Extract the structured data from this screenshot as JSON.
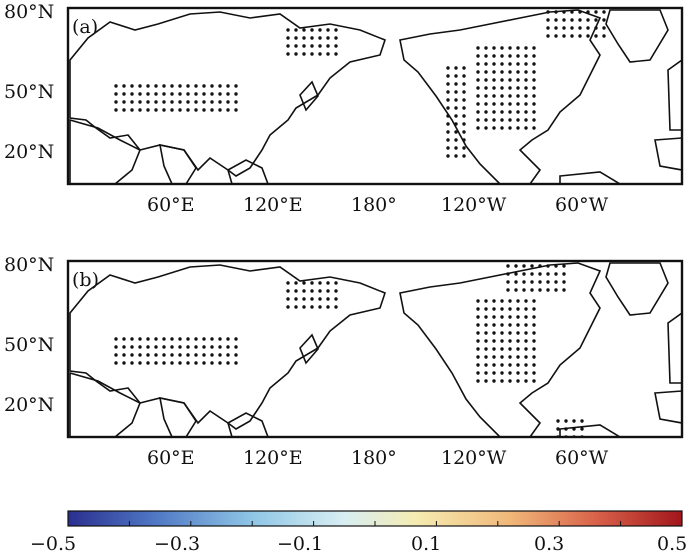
{
  "panels": [
    {
      "tag": "(a)",
      "lat_labels": [
        "80°N",
        "50°N",
        "20°N"
      ],
      "lon_labels": [
        "60°E",
        "120°E",
        "180°",
        "120°W",
        "60°W"
      ]
    },
    {
      "tag": "(b)",
      "lat_labels": [
        "80°N",
        "50°N",
        "20°N"
      ],
      "lon_labels": [
        "60°E",
        "120°E",
        "180°",
        "120°W",
        "60°W"
      ]
    }
  ],
  "colorbar": {
    "ticks": [
      "−0.5",
      "−0.3",
      "−0.1",
      "0.1",
      "0.3",
      "0.5"
    ],
    "range": [
      -0.5,
      0.5
    ],
    "colors": [
      "#2a2f8f",
      "#4f77c4",
      "#8fc6e6",
      "#d8eef2",
      "#f5ebb0",
      "#f0b779",
      "#d9624a",
      "#a2161c"
    ]
  },
  "styles": {
    "land_base": "#a9d3ec",
    "ocean": "#ffffff",
    "coast": "#111111",
    "stipple": "#111111"
  }
}
